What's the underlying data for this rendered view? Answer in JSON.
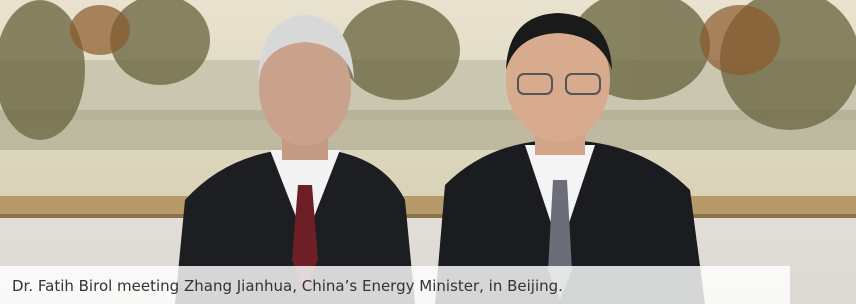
{
  "photo": {
    "caption": "Dr. Fatih Birol meeting Zhang Jianhua, China’s Energy Minister, in Beijing."
  }
}
